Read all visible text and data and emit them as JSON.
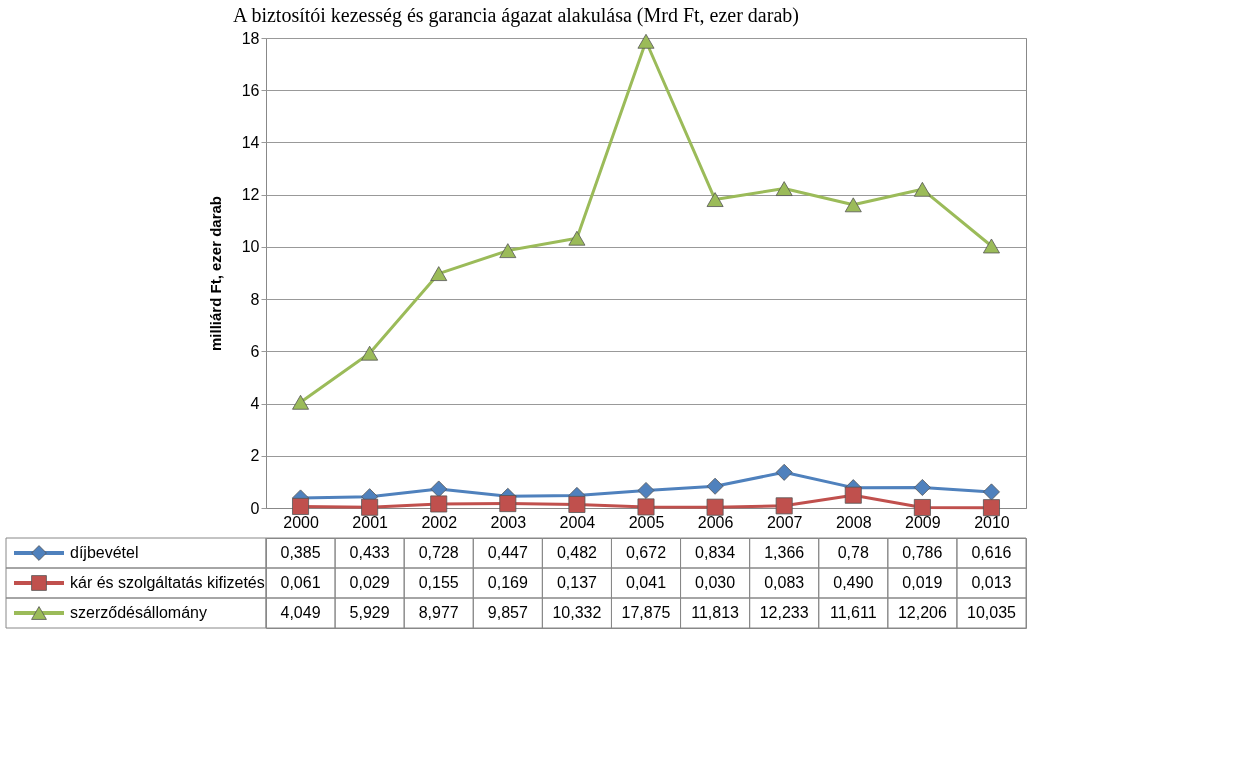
{
  "chart_data": {
    "type": "line",
    "title": "A biztosítói kezesség és garancia ágazat alakulása (Mrd Ft, ezer darab)",
    "ylabel": "milliárd Ft, ezer darab",
    "categories": [
      "2000",
      "2001",
      "2002",
      "2003",
      "2004",
      "2005",
      "2006",
      "2007",
      "2008",
      "2009",
      "2010"
    ],
    "ylim": [
      0,
      18
    ],
    "yticks": [
      0,
      2,
      4,
      6,
      8,
      10,
      12,
      14,
      16,
      18
    ],
    "grid": "y",
    "legend": "bottom",
    "series": [
      {
        "name": "díjbevétel",
        "color": "#4f81bd",
        "marker": "diamond",
        "values": [
          0.385,
          0.433,
          0.728,
          0.447,
          0.482,
          0.672,
          0.834,
          1.366,
          0.78,
          0.786,
          0.616
        ],
        "value_labels": [
          "0,385",
          "0,433",
          "0,728",
          "0,447",
          "0,482",
          "0,672",
          "0,834",
          "1,366",
          "0,78",
          "0,786",
          "0,616"
        ]
      },
      {
        "name": "kár és szolgáltatás kifizetés",
        "color": "#c0504d",
        "marker": "square",
        "values": [
          0.061,
          0.029,
          0.155,
          0.169,
          0.137,
          0.041,
          0.03,
          0.083,
          0.49,
          0.019,
          0.013
        ],
        "value_labels": [
          "0,061",
          "0,029",
          "0,155",
          "0,169",
          "0,137",
          "0,041",
          "0,030",
          "0,083",
          "0,490",
          "0,019",
          "0,013"
        ]
      },
      {
        "name": "szerződésállomány",
        "color": "#9bbb59",
        "marker": "triangle",
        "values": [
          4.049,
          5.929,
          8.977,
          9.857,
          10.332,
          17.875,
          11.813,
          12.233,
          11.611,
          12.206,
          10.035
        ],
        "value_labels": [
          "4,049",
          "5,929",
          "8,977",
          "9,857",
          "10,332",
          "17,875",
          "11,813",
          "12,233",
          "11,611",
          "12,206",
          "10,035"
        ]
      }
    ]
  }
}
